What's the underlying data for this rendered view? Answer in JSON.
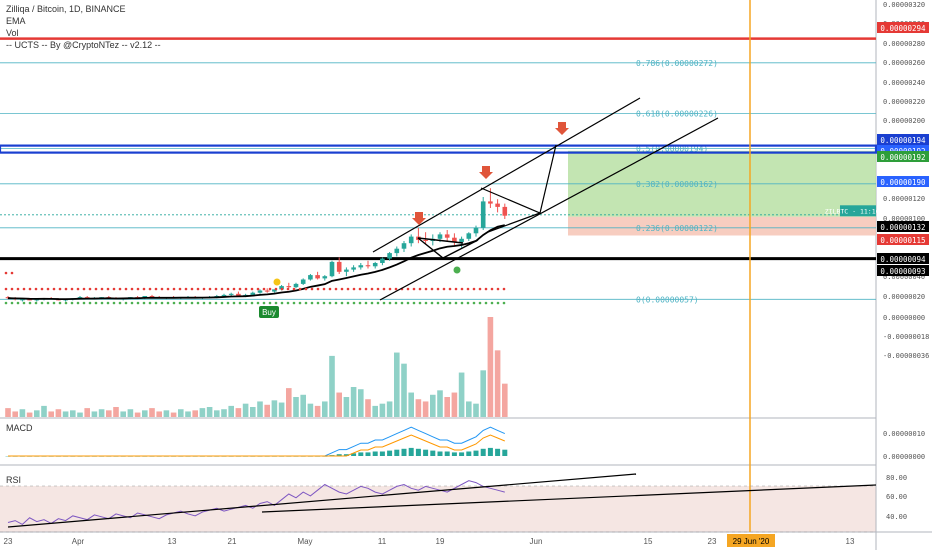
{
  "header": {
    "title": "Zilliqa / Bitcoin, 1D, BINANCE",
    "ind1": "EMA",
    "ind2": "Vol",
    "ind3": "-- UCTS -- By @CryptoNTez -- v2.12 --"
  },
  "panes": {
    "macd": "MACD",
    "rsi": "RSI"
  },
  "symbol_tag": "ZILBTC · 11:16:44",
  "buy_label": "Buy",
  "date_marker": "29 Jun '20",
  "price_tags": [
    {
      "text": "0.00000294",
      "color": "#e53935",
      "v": 2.94e-06
    },
    {
      "text": "0.00000194",
      "color": "#1a3fd0",
      "v": 1.94e-06
    },
    {
      "text": "0.00000192",
      "color": "#2962ff",
      "v": 1.92e-06
    },
    {
      "text": "0.00000192",
      "color": "#2e9e3a",
      "v": 1.92e-06
    },
    {
      "text": "0.00000190",
      "color": "#2962ff",
      "v": 1.9e-06
    },
    {
      "text": "0.00000132",
      "color": "#000000",
      "v": 1.32e-06
    },
    {
      "text": "0.00000115",
      "color": "#e53935",
      "v": 1.15e-06
    },
    {
      "text": "0.00000094",
      "color": "#000000",
      "v": 9.4e-07
    },
    {
      "text": "0.00000093",
      "color": "#000000",
      "v": 9.3e-07
    }
  ],
  "fib_labels": [
    {
      "text": "0.786(0.00000272)",
      "v": 2.72e-06
    },
    {
      "text": "0.618(0.00000226)",
      "v": 2.26e-06
    },
    {
      "text": "0.5(0.00000194)",
      "v": 1.94e-06
    },
    {
      "text": "0.382(0.00000162)",
      "v": 1.62e-06
    },
    {
      "text": "0.236(0.00000122)",
      "v": 1.22e-06
    },
    {
      "text": "0(0.00000057)",
      "v": 5.7e-07
    }
  ],
  "colors": {
    "up": "#26a69a",
    "down": "#ef5350",
    "fib": "#4fb3c4",
    "ema": "#000000"
  },
  "chart_data": {
    "type": "candlestick",
    "price_axis_ticks": [
      "0.00000320",
      "0.00000300",
      "0.00000280",
      "0.00000260",
      "0.00000240",
      "0.00000220",
      "0.00000200",
      "0.00000180",
      "0.00000160",
      "0.00000140",
      "0.00000120",
      "0.00000100",
      "0.00000080",
      "0.00000060",
      "0.00000040",
      "0.00000020",
      "0.00000000",
      "-0.00000018",
      "-0.00000036"
    ],
    "macd_axis_ticks": [
      "0.00000010",
      "0.00000000"
    ],
    "rsi_axis_ticks": [
      "80.00",
      "60.00",
      "40.00"
    ],
    "x_ticks": [
      "23",
      "Apr",
      "13",
      "21",
      "May",
      "11",
      "19",
      "Jun",
      "15",
      "23",
      "13"
    ],
    "horizontal_levels": {
      "red": 2.94e-06,
      "blue": 1.94e-06,
      "black": 9.4e-07
    },
    "position": {
      "entry": 1.32e-06,
      "target": 1.92e-06,
      "stop": 1.15e-06
    },
    "candles": [
      [
        59,
        60,
        57,
        58
      ],
      [
        58,
        59,
        56,
        57
      ],
      [
        57,
        58,
        55,
        57
      ],
      [
        57,
        58,
        56,
        56
      ],
      [
        56,
        57,
        55,
        57
      ],
      [
        57,
        58,
        56,
        58
      ],
      [
        58,
        59,
        57,
        57
      ],
      [
        57,
        58,
        56,
        56
      ],
      [
        56,
        57,
        55,
        57
      ],
      [
        57,
        58,
        56,
        58
      ],
      [
        58,
        60,
        57,
        59
      ],
      [
        59,
        60,
        58,
        58
      ],
      [
        58,
        59,
        57,
        58
      ],
      [
        58,
        59,
        57,
        59
      ],
      [
        59,
        60,
        58,
        58
      ],
      [
        58,
        59,
        57,
        57
      ],
      [
        57,
        58,
        56,
        58
      ],
      [
        58,
        59,
        57,
        59
      ],
      [
        59,
        60,
        58,
        58
      ],
      [
        58,
        60,
        57,
        60
      ],
      [
        60,
        61,
        58,
        59
      ],
      [
        59,
        60,
        58,
        58
      ],
      [
        58,
        59,
        57,
        59
      ],
      [
        59,
        60,
        58,
        58
      ],
      [
        58,
        59,
        57,
        59
      ],
      [
        59,
        60,
        58,
        59
      ],
      [
        59,
        60,
        58,
        58
      ],
      [
        58,
        59,
        57,
        59
      ],
      [
        59,
        60,
        58,
        59
      ],
      [
        59,
        61,
        58,
        60
      ],
      [
        60,
        62,
        59,
        61
      ],
      [
        61,
        63,
        60,
        62
      ],
      [
        62,
        64,
        61,
        60
      ],
      [
        60,
        62,
        59,
        61
      ],
      [
        61,
        64,
        60,
        63
      ],
      [
        63,
        66,
        62,
        65
      ],
      [
        65,
        67,
        63,
        64
      ],
      [
        64,
        66,
        63,
        66
      ],
      [
        66,
        70,
        65,
        69
      ],
      [
        69,
        72,
        67,
        68
      ],
      [
        68,
        72,
        67,
        71
      ],
      [
        71,
        76,
        70,
        75
      ],
      [
        75,
        80,
        74,
        79
      ],
      [
        79,
        82,
        75,
        76
      ],
      [
        76,
        79,
        74,
        78
      ],
      [
        78,
        92,
        77,
        91
      ],
      [
        91,
        95,
        80,
        82
      ],
      [
        82,
        86,
        78,
        84
      ],
      [
        84,
        88,
        82,
        86
      ],
      [
        86,
        90,
        84,
        88
      ],
      [
        88,
        92,
        85,
        87
      ],
      [
        87,
        91,
        85,
        90
      ],
      [
        90,
        95,
        88,
        94
      ],
      [
        94,
        100,
        92,
        99
      ],
      [
        99,
        105,
        96,
        103
      ],
      [
        103,
        110,
        100,
        108
      ],
      [
        108,
        116,
        105,
        114
      ],
      [
        114,
        122,
        108,
        111
      ],
      [
        111,
        118,
        107,
        110
      ],
      [
        110,
        116,
        106,
        112
      ],
      [
        112,
        118,
        109,
        116
      ],
      [
        116,
        120,
        110,
        113
      ],
      [
        113,
        117,
        106,
        109
      ],
      [
        109,
        114,
        104,
        112
      ],
      [
        112,
        118,
        110,
        117
      ],
      [
        117,
        124,
        114,
        122
      ],
      [
        122,
        150,
        120,
        146
      ],
      [
        146,
        158,
        140,
        144
      ],
      [
        144,
        148,
        136,
        141
      ],
      [
        141,
        144,
        130,
        133
      ]
    ],
    "volume": [
      8,
      5,
      7,
      4,
      6,
      10,
      5,
      7,
      5,
      6,
      4,
      8,
      5,
      7,
      6,
      9,
      5,
      7,
      4,
      6,
      8,
      5,
      6,
      4,
      7,
      5,
      6,
      8,
      9,
      6,
      7,
      10,
      8,
      12,
      9,
      14,
      11,
      15,
      13,
      26,
      18,
      20,
      12,
      10,
      14,
      55,
      22,
      18,
      27,
      25,
      16,
      10,
      12,
      14,
      58,
      48,
      22,
      16,
      14,
      20,
      24,
      18,
      22,
      40,
      14,
      12,
      42,
      90,
      60,
      30
    ],
    "macd_hist": [
      -1,
      -1,
      -1,
      -1,
      -1,
      -1,
      -1,
      -1,
      -1,
      -1,
      -1,
      -1,
      -1,
      -1,
      -1,
      -1,
      -1,
      -1,
      -1,
      -1,
      -1,
      -1,
      -1,
      -1,
      -1,
      -1,
      -1,
      -1,
      -1,
      -1,
      -1,
      -1,
      -1,
      -1,
      -1,
      -1,
      -1,
      -1,
      -1,
      -1,
      -1,
      -1,
      -1,
      -1,
      -1,
      1,
      2,
      2,
      3,
      4,
      4,
      5,
      5,
      6,
      7,
      8,
      9,
      8,
      7,
      6,
      5,
      5,
      4,
      4,
      5,
      6,
      8,
      9,
      8,
      7
    ]
  }
}
